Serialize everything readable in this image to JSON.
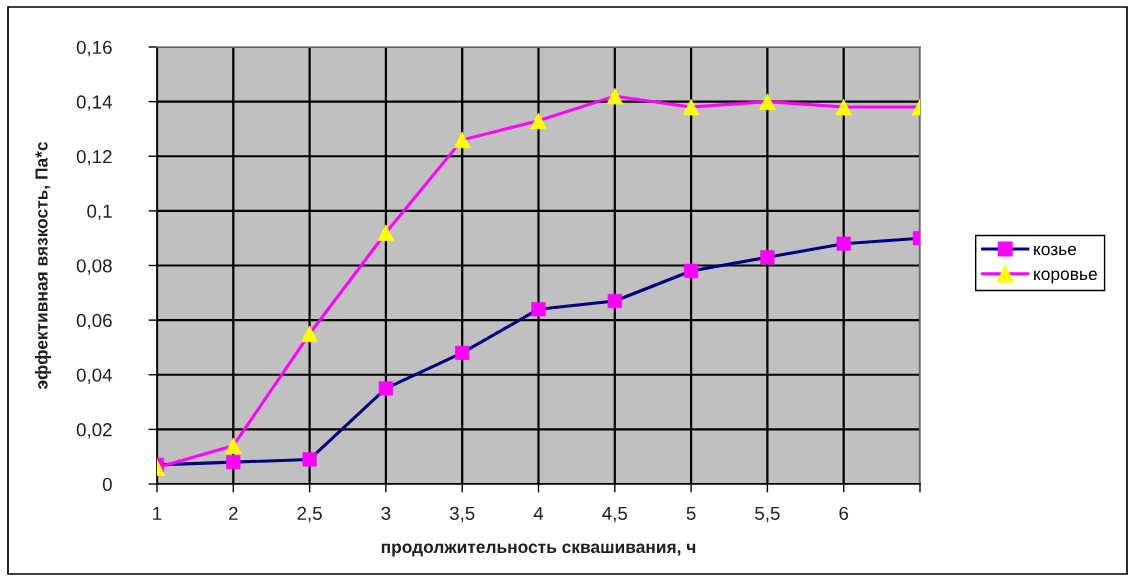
{
  "chart_data": {
    "type": "line",
    "xlabel": "продолжительность сквашивания, ч",
    "ylabel": "эффективная вязкость, Па*с",
    "categories": [
      "1",
      "2",
      "2,5",
      "3",
      "3,5",
      "4",
      "4,5",
      "5",
      "5,5",
      "6",
      null
    ],
    "series": [
      {
        "name": "козье",
        "color": "#000080",
        "marker": "square",
        "colors": [
          "#ff00ff",
          "#ff00ff",
          "#ff00ff",
          "#ff00ff",
          "#ff00ff",
          "#ff00ff",
          "#ff00ff",
          "#ff00ff",
          "#ff00ff",
          "#ff00ff",
          "#ff00ff"
        ],
        "values": [
          0.007,
          0.008,
          0.009,
          0.035,
          0.048,
          0.064,
          0.067,
          0.078,
          0.083,
          0.088,
          0.09
        ]
      },
      {
        "name": "коровье",
        "color": "#ff00ff",
        "marker": "triangle",
        "colors": [
          "#ffff00",
          "#ffff00",
          "#ffff00",
          "#ffff00",
          "#ffff00",
          "#ffff00",
          "#ffff00",
          "#ffff00",
          "#ffff00",
          "#ffff00",
          "#ffff00"
        ],
        "values": [
          0.006,
          0.014,
          0.055,
          0.092,
          0.126,
          0.133,
          0.142,
          0.138,
          0.14,
          0.138,
          0.138
        ]
      }
    ],
    "ylim": [
      0,
      0.16
    ],
    "yticks": [
      0,
      {
        "value": 0.02,
        "label": "0,02"
      },
      {
        "value": 0.04,
        "label": "0,04"
      },
      {
        "value": 0.06,
        "label": "0,06"
      },
      {
        "value": 0.08,
        "label": "0,08"
      },
      {
        "value": 0.1,
        "label": "0,1"
      },
      {
        "value": 0.12,
        "label": "0,12"
      },
      {
        "value": 0.14,
        "label": "0,14"
      },
      {
        "value": 0.16,
        "label": "0,16"
      }
    ],
    "grid": true,
    "legend": "right"
  }
}
